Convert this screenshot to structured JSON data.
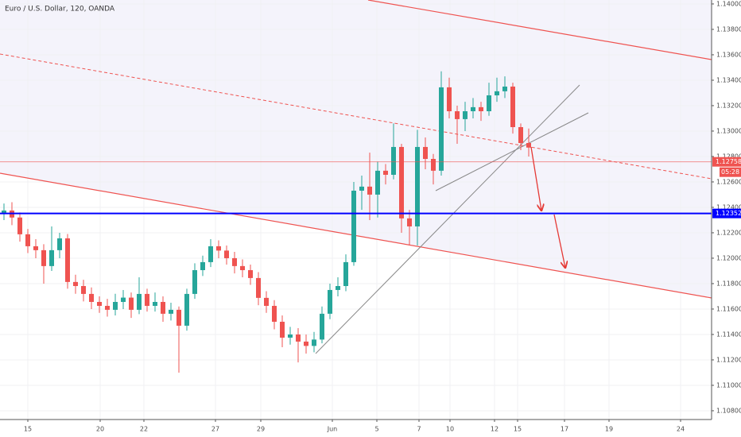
{
  "chart_data": {
    "type": "candlestick",
    "title": "Euro / U.S. Dollar, 120, OANDA",
    "up_color": "#26a69a",
    "down_color": "#ef5350",
    "xlim": [
      0,
      89.5
    ],
    "ylim": [
      1.10731,
      1.14031
    ],
    "x": [
      0.5,
      1.5,
      2.5,
      3.5,
      4.5,
      5.5,
      6.5,
      7.5,
      8.5,
      9.5,
      10.5,
      11.5,
      12.5,
      13.5,
      14.5,
      15.5,
      16.5,
      17.5,
      18.5,
      19.5,
      20.5,
      21.5,
      22.5,
      23.5,
      24.5,
      25.5,
      26.5,
      27.5,
      28.5,
      29.5,
      30.5,
      31.5,
      32.5,
      33.5,
      34.5,
      35.5,
      36.5,
      37.5,
      38.5,
      39.5,
      40.5,
      41.5,
      42.5,
      43.5,
      44.5,
      45.5,
      46.5,
      47.5,
      48.5,
      49.5,
      50.5,
      51.5,
      52.5,
      53.5,
      54.5,
      55.5,
      56.5,
      57.5,
      58.5,
      59.5,
      60.5,
      61.5,
      62.5,
      63.5,
      64.5,
      65.5,
      66.5
    ],
    "open": [
      1.1235,
      1.12375,
      1.1232,
      1.12188,
      1.12094,
      1.12063,
      1.11938,
      1.12063,
      1.12156,
      1.11813,
      1.11781,
      1.11719,
      1.11656,
      1.11625,
      1.11594,
      1.11656,
      1.1169,
      1.11594,
      1.11719,
      1.11625,
      1.11656,
      1.11563,
      1.11594,
      1.11469,
      1.11719,
      1.11906,
      1.11969,
      1.12094,
      1.1206,
      1.12,
      1.11938,
      1.11906,
      1.11844,
      1.11688,
      1.11625,
      1.115,
      1.11375,
      1.114,
      1.11344,
      1.1131,
      1.1136,
      1.11563,
      1.1175,
      1.11781,
      1.11969,
      1.12531,
      1.12563,
      1.125,
      1.12688,
      1.12656,
      1.12875,
      1.12313,
      1.1225,
      1.12875,
      1.12781,
      1.12688,
      1.13344,
      1.13156,
      1.13094,
      1.13156,
      1.13188,
      1.13156,
      1.13281,
      1.13313,
      1.1335,
      1.13031,
      1.12906
    ],
    "high": [
      1.1243,
      1.1244,
      1.1236,
      1.1223,
      1.1215,
      1.1211,
      1.1225,
      1.122,
      1.1219,
      1.1187,
      1.1183,
      1.1177,
      1.117,
      1.1168,
      1.1172,
      1.1175,
      1.1173,
      1.1185,
      1.1176,
      1.1173,
      1.117,
      1.1165,
      1.1162,
      1.1176,
      1.1196,
      1.1202,
      1.1215,
      1.1214,
      1.121,
      1.1205,
      1.1199,
      1.1195,
      1.1189,
      1.1174,
      1.1167,
      1.1155,
      1.1146,
      1.1145,
      1.114,
      1.1142,
      1.1162,
      1.118,
      1.1185,
      1.1203,
      1.126,
      1.1265,
      1.1283,
      1.1276,
      1.1274,
      1.1306,
      1.129,
      1.1238,
      1.1301,
      1.1295,
      1.1282,
      1.1347,
      1.1342,
      1.132,
      1.1323,
      1.1326,
      1.1323,
      1.1338,
      1.1342,
      1.1343,
      1.1338,
      1.1306,
      1.1302
    ],
    "low": [
      1.123,
      1.1226,
      1.1213,
      1.1204,
      1.12,
      1.118,
      1.119,
      1.12,
      1.1176,
      1.1172,
      1.1166,
      1.116,
      1.1157,
      1.1154,
      1.1155,
      1.116,
      1.1153,
      1.1156,
      1.1158,
      1.1158,
      1.115,
      1.1151,
      1.111,
      1.1143,
      1.1168,
      1.1186,
      1.1193,
      1.12,
      1.1195,
      1.1188,
      1.1185,
      1.1179,
      1.1163,
      1.1157,
      1.1144,
      1.113,
      1.1132,
      1.1118,
      1.1125,
      1.1126,
      1.1133,
      1.1152,
      1.117,
      1.1174,
      1.1194,
      1.1238,
      1.123,
      1.1232,
      1.1258,
      1.1262,
      1.122,
      1.121,
      1.121,
      1.127,
      1.1258,
      1.1265,
      1.131,
      1.129,
      1.13,
      1.131,
      1.1308,
      1.1312,
      1.1323,
      1.1326,
      1.1298,
      1.1285,
      1.128
    ],
    "close": [
      1.12375,
      1.1232,
      1.12188,
      1.12094,
      1.12063,
      1.11938,
      1.12063,
      1.12156,
      1.11813,
      1.11781,
      1.11719,
      1.11656,
      1.11625,
      1.11594,
      1.11656,
      1.1169,
      1.11594,
      1.11719,
      1.11625,
      1.11656,
      1.11563,
      1.11594,
      1.11469,
      1.11719,
      1.11906,
      1.11969,
      1.12094,
      1.1206,
      1.12,
      1.11938,
      1.11906,
      1.11844,
      1.11688,
      1.11625,
      1.115,
      1.11375,
      1.114,
      1.11344,
      1.1131,
      1.1136,
      1.11563,
      1.1175,
      1.11781,
      1.11969,
      1.12531,
      1.12563,
      1.125,
      1.12688,
      1.12656,
      1.12875,
      1.12313,
      1.1225,
      1.12875,
      1.12781,
      1.12688,
      1.13344,
      1.13156,
      1.13094,
      1.13156,
      1.13188,
      1.13156,
      1.13281,
      1.13313,
      1.1335,
      1.13031,
      1.12906,
      1.1287
    ],
    "yticks": [
      {
        "value": 1.108,
        "label": "1.10800"
      },
      {
        "value": 1.11,
        "label": "1.11000"
      },
      {
        "value": 1.112,
        "label": "1.11200"
      },
      {
        "value": 1.114,
        "label": "1.11400"
      },
      {
        "value": 1.116,
        "label": "1.11600"
      },
      {
        "value": 1.118,
        "label": "1.11800"
      },
      {
        "value": 1.12,
        "label": "1.12000"
      },
      {
        "value": 1.122,
        "label": "1.12200"
      },
      {
        "value": 1.124,
        "label": "1.12400"
      },
      {
        "value": 1.126,
        "label": "1.12600"
      },
      {
        "value": 1.128,
        "label": "1.12800"
      },
      {
        "value": 1.13,
        "label": "1.13000"
      },
      {
        "value": 1.132,
        "label": "1.13200"
      },
      {
        "value": 1.134,
        "label": "1.13400"
      },
      {
        "value": 1.136,
        "label": "1.13600"
      },
      {
        "value": 1.138,
        "label": "1.13800"
      },
      {
        "value": 1.14,
        "label": "1.14000"
      }
    ],
    "xticks": [
      {
        "value": 3.5,
        "label": "15"
      },
      {
        "value": 12.6,
        "label": "20"
      },
      {
        "value": 18.1,
        "label": "22"
      },
      {
        "value": 27.1,
        "label": "27"
      },
      {
        "value": 32.8,
        "label": "29"
      },
      {
        "value": 41.8,
        "label": "Jun"
      },
      {
        "value": 47.4,
        "label": "5"
      },
      {
        "value": 52.7,
        "label": "7"
      },
      {
        "value": 56.6,
        "label": "10"
      },
      {
        "value": 62.2,
        "label": "12"
      },
      {
        "value": 65.1,
        "label": "15"
      },
      {
        "value": 71,
        "label": "17"
      },
      {
        "value": 76.6,
        "label": "19"
      },
      {
        "value": 85.6,
        "label": "24"
      }
    ],
    "price_lines": [
      {
        "value": 1.12758,
        "color": "#ef5350"
      },
      {
        "value": 1.12352,
        "color": "#0000ff"
      }
    ],
    "countdown": "05:28"
  }
}
